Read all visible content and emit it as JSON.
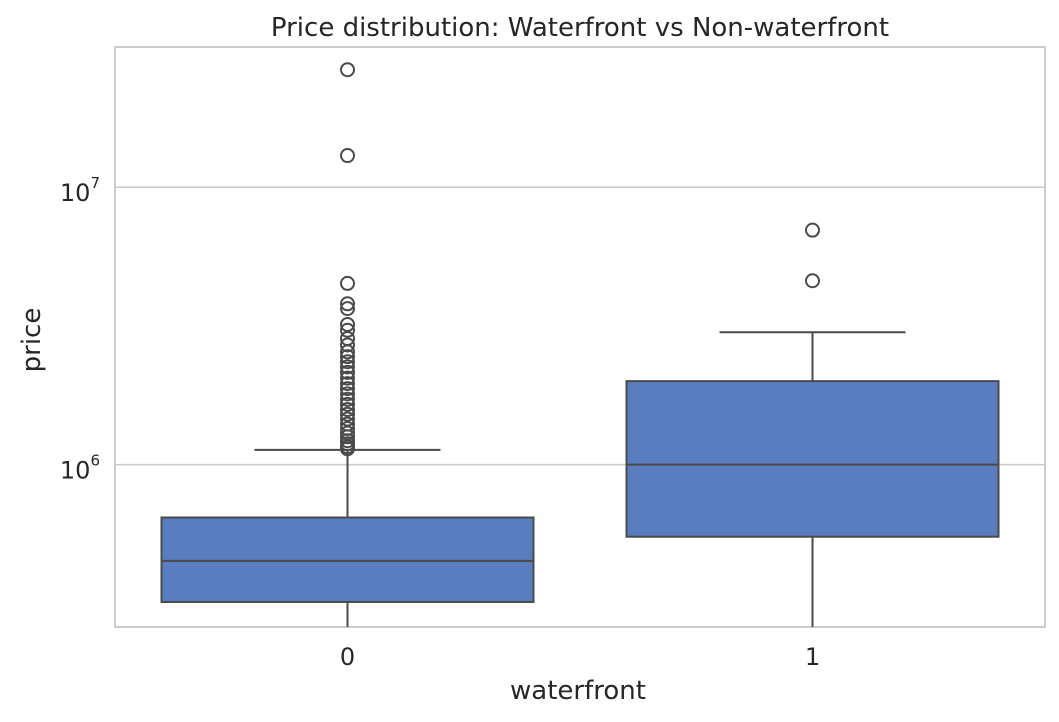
{
  "chart_data": {
    "type": "box",
    "title": "Price distribution: Waterfront vs Non-waterfront",
    "xlabel": "waterfront",
    "ylabel": "price",
    "y_scale": "log",
    "ylim": [
      260000,
      32000000
    ],
    "y_ticks": [
      {
        "value": 1000000,
        "base": "10",
        "exp": "6"
      },
      {
        "value": 10000000,
        "base": "10",
        "exp": "7"
      }
    ],
    "grid": "horizontal",
    "box_color": "#5a7dc0",
    "line_color": "#4a4a4a",
    "categories": [
      "0",
      "1"
    ],
    "boxes": [
      {
        "category": "0",
        "whisker_low": 260000,
        "q1": 320000,
        "median": 450000,
        "q3": 645000,
        "whisker_high": 1130000,
        "outliers": [
          1140000,
          1160000,
          1190000,
          1220000,
          1260000,
          1300000,
          1350000,
          1400000,
          1460000,
          1520000,
          1580000,
          1650000,
          1720000,
          1800000,
          1880000,
          1960000,
          2050000,
          2150000,
          2250000,
          2350000,
          2450000,
          2550000,
          2700000,
          2850000,
          3050000,
          3200000,
          3650000,
          3800000,
          4500000,
          13000000,
          26500000
        ]
      },
      {
        "category": "1",
        "whisker_low": 260000,
        "q1": 550000,
        "median": 1000000,
        "q3": 2000000,
        "whisker_high": 3000000,
        "outliers": [
          4600000,
          7000000
        ]
      }
    ]
  }
}
